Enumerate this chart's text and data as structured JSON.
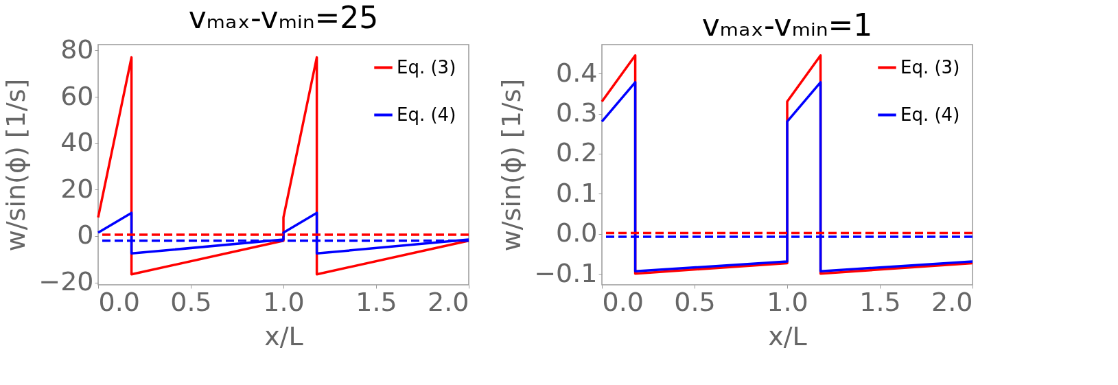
{
  "chart_data": [
    {
      "type": "line",
      "title": "vₘₐₓ-vₘᵢₙ=25",
      "xlabel": "x/L",
      "ylabel": "w/sin(ϕ) [1/s]",
      "xlim": [
        0,
        2
      ],
      "ylim": [
        -21,
        82.5
      ],
      "xticks": [
        {
          "value": 0,
          "label": "0.0"
        },
        {
          "value": 0.5,
          "label": "0.5"
        },
        {
          "value": 1,
          "label": "1.0"
        },
        {
          "value": 1.5,
          "label": "1.5"
        },
        {
          "value": 2,
          "label": "2.0"
        }
      ],
      "yticks": [
        -20,
        0,
        20,
        40,
        60,
        80
      ],
      "grid": false,
      "legend": "top right",
      "line_style": "solid",
      "series": [
        {
          "name": "Eq. (3)",
          "color": "#ff0000",
          "x": [
            0,
            0.18,
            0.18,
            1.0,
            1.0,
            1.18,
            1.18,
            2.0
          ],
          "values": [
            8,
            77,
            -16.5,
            -2,
            8,
            77,
            -16.5,
            -2
          ]
        },
        {
          "name": "Eq. (4)",
          "color": "#0000ff",
          "x": [
            0,
            0.18,
            0.18,
            1.0,
            1.0,
            1.18,
            1.18,
            2.0
          ],
          "values": [
            1.5,
            10,
            -7.5,
            -1.5,
            1.5,
            10,
            -7.5,
            -1.5
          ]
        }
      ],
      "ref_lines": [
        {
          "axis": "y",
          "value": 0.6,
          "color": "#ff0000",
          "line_style": "dashed"
        },
        {
          "axis": "y",
          "value": -2,
          "color": "#0000ff",
          "line_style": "dashed"
        }
      ]
    },
    {
      "type": "line",
      "title": "vₘₐₓ-vₘᵢₙ=1",
      "xlabel": "x/L",
      "ylabel": "w/sin(ϕ) [1/s]",
      "xlim": [
        0,
        2
      ],
      "ylim": [
        -0.127,
        0.472
      ],
      "xticks": [
        {
          "value": 0,
          "label": "0.0"
        },
        {
          "value": 0.5,
          "label": "0.5"
        },
        {
          "value": 1,
          "label": "1.0"
        },
        {
          "value": 1.5,
          "label": "1.5"
        },
        {
          "value": 2,
          "label": "2.0"
        }
      ],
      "yticks": [
        -0.1,
        {
          "value": 0,
          "label": "0.0"
        },
        0.1,
        0.2,
        0.3,
        0.4
      ],
      "grid": false,
      "legend": "top right",
      "line_style": "solid",
      "series": [
        {
          "name": "Eq. (3)",
          "color": "#ff0000",
          "x": [
            0,
            0.18,
            0.18,
            1.0,
            1.0,
            1.18,
            1.18,
            2.0
          ],
          "values": [
            0.33,
            0.445,
            -0.099,
            -0.073,
            0.33,
            0.445,
            -0.099,
            -0.073
          ]
        },
        {
          "name": "Eq. (4)",
          "color": "#0000ff",
          "x": [
            0,
            0.18,
            0.18,
            1.0,
            1.0,
            1.18,
            1.18,
            2.0
          ],
          "values": [
            0.28,
            0.378,
            -0.093,
            -0.069,
            0.28,
            0.378,
            -0.093,
            -0.069
          ]
        }
      ],
      "ref_lines": [
        {
          "axis": "y",
          "value": 0.002,
          "color": "#ff0000",
          "line_style": "dashed"
        },
        {
          "axis": "y",
          "value": -0.007,
          "color": "#0000ff",
          "line_style": "dashed"
        }
      ]
    }
  ]
}
